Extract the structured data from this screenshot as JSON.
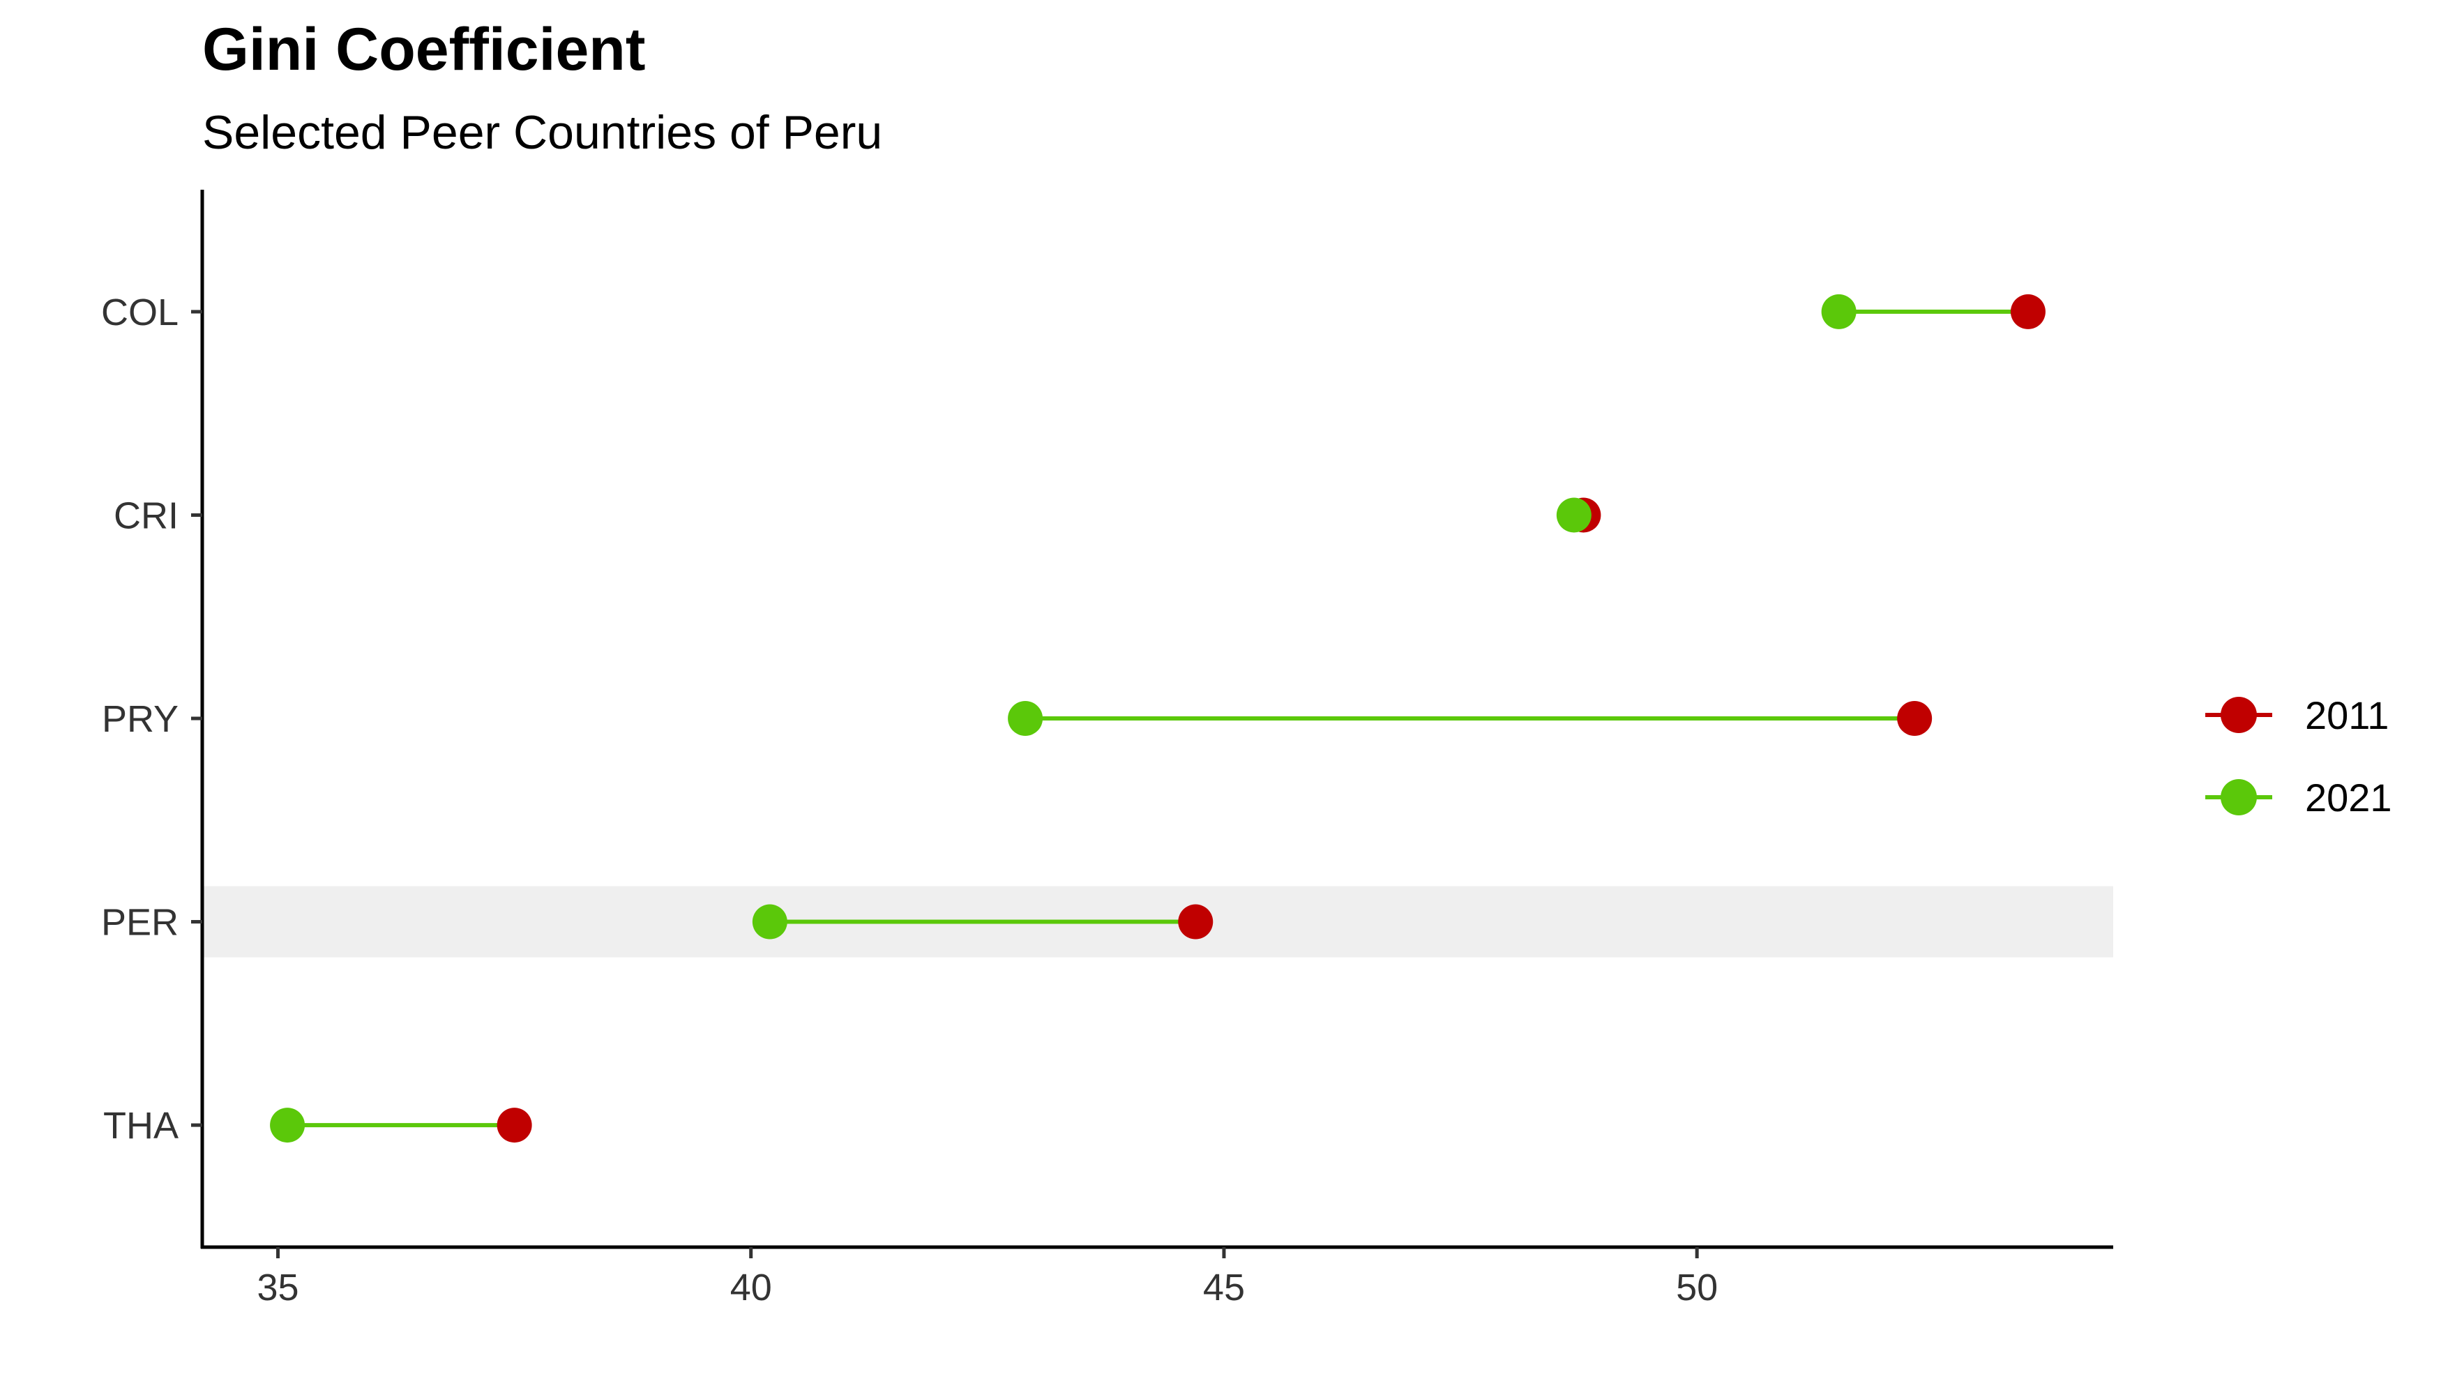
{
  "chart_data": {
    "type": "scatter",
    "subtype": "dumbbell",
    "title": "Gini Coefficient",
    "subtitle": "Selected Peer Countries of Peru",
    "xlabel": "",
    "ylabel": "",
    "xlim": [
      34.2,
      54.4
    ],
    "x_ticks": [
      35,
      40,
      45,
      50
    ],
    "categories": [
      "COL",
      "CRI",
      "PRY",
      "PER",
      "THA"
    ],
    "highlight_category": "PER",
    "series": [
      {
        "name": "2011",
        "color": "#c00000",
        "values": [
          53.5,
          48.8,
          52.3,
          44.7,
          37.5
        ]
      },
      {
        "name": "2021",
        "color": "#5bc80a",
        "values": [
          51.5,
          48.7,
          42.9,
          40.2,
          35.1
        ]
      }
    ],
    "connector_color": "#5bc80a",
    "highlight_color": "#efefef",
    "grid": false,
    "legend_position": "right"
  }
}
